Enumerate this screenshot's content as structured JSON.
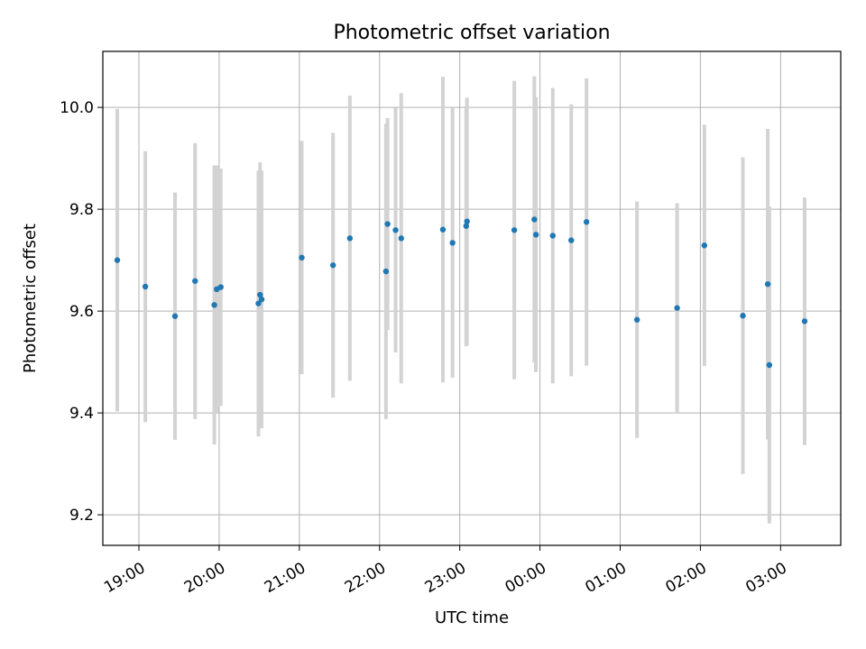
{
  "chart_data": {
    "type": "scatter",
    "title": "Photometric offset variation",
    "xlabel": "UTC time",
    "ylabel": "Photometric offset",
    "x_unit": "hours (UTC, continuing past midnight)",
    "xlim": [
      18.55,
      27.75
    ],
    "ylim": [
      9.14,
      10.11
    ],
    "grid": true,
    "x_ticks": [
      {
        "value": 19,
        "label": "19:00"
      },
      {
        "value": 20,
        "label": "20:00"
      },
      {
        "value": 21,
        "label": "21:00"
      },
      {
        "value": 22,
        "label": "22:00"
      },
      {
        "value": 23,
        "label": "23:00"
      },
      {
        "value": 24,
        "label": "00:00"
      },
      {
        "value": 25,
        "label": "01:00"
      },
      {
        "value": 26,
        "label": "02:00"
      },
      {
        "value": 27,
        "label": "03:00"
      }
    ],
    "y_ticks": [
      {
        "value": 9.2,
        "label": "9.2"
      },
      {
        "value": 9.4,
        "label": "9.4"
      },
      {
        "value": 9.6,
        "label": "9.6"
      },
      {
        "value": 9.8,
        "label": "9.8"
      },
      {
        "value": 10.0,
        "label": "10.0"
      }
    ],
    "marker_color": "#1f77b4",
    "errorbar_color": "#d3d3d3",
    "points": [
      {
        "x": 18.73,
        "y": 9.7,
        "err": 0.297
      },
      {
        "x": 19.08,
        "y": 9.648,
        "err": 0.266
      },
      {
        "x": 19.45,
        "y": 9.59,
        "err": 0.243
      },
      {
        "x": 19.7,
        "y": 9.659,
        "err": 0.271
      },
      {
        "x": 19.94,
        "y": 9.612,
        "err": 0.274
      },
      {
        "x": 19.97,
        "y": 9.643,
        "err": 0.243
      },
      {
        "x": 20.02,
        "y": 9.647,
        "err": 0.233
      },
      {
        "x": 20.49,
        "y": 9.615,
        "err": 0.261
      },
      {
        "x": 20.51,
        "y": 9.632,
        "err": 0.26
      },
      {
        "x": 20.53,
        "y": 9.623,
        "err": 0.253
      },
      {
        "x": 21.03,
        "y": 9.705,
        "err": 0.229
      },
      {
        "x": 21.42,
        "y": 9.69,
        "err": 0.26
      },
      {
        "x": 21.63,
        "y": 9.743,
        "err": 0.28
      },
      {
        "x": 22.08,
        "y": 9.678,
        "err": 0.29
      },
      {
        "x": 22.1,
        "y": 9.771,
        "err": 0.208
      },
      {
        "x": 22.2,
        "y": 9.759,
        "err": 0.24
      },
      {
        "x": 22.27,
        "y": 9.743,
        "err": 0.285
      },
      {
        "x": 22.79,
        "y": 9.76,
        "err": 0.3
      },
      {
        "x": 22.91,
        "y": 9.734,
        "err": 0.265
      },
      {
        "x": 23.08,
        "y": 9.767,
        "err": 0.236
      },
      {
        "x": 23.09,
        "y": 9.776,
        "err": 0.243
      },
      {
        "x": 23.68,
        "y": 9.759,
        "err": 0.293
      },
      {
        "x": 23.93,
        "y": 9.78,
        "err": 0.281
      },
      {
        "x": 23.95,
        "y": 9.75,
        "err": 0.27
      },
      {
        "x": 24.16,
        "y": 9.748,
        "err": 0.29
      },
      {
        "x": 24.39,
        "y": 9.739,
        "err": 0.267
      },
      {
        "x": 24.58,
        "y": 9.775,
        "err": 0.282
      },
      {
        "x": 25.21,
        "y": 9.583,
        "err": 0.232
      },
      {
        "x": 25.71,
        "y": 9.606,
        "err": 0.206
      },
      {
        "x": 26.05,
        "y": 9.729,
        "err": 0.237
      },
      {
        "x": 26.53,
        "y": 9.591,
        "err": 0.311
      },
      {
        "x": 26.84,
        "y": 9.653,
        "err": 0.305
      },
      {
        "x": 26.86,
        "y": 9.494,
        "err": 0.311
      },
      {
        "x": 27.3,
        "y": 9.58,
        "err": 0.243
      }
    ]
  }
}
